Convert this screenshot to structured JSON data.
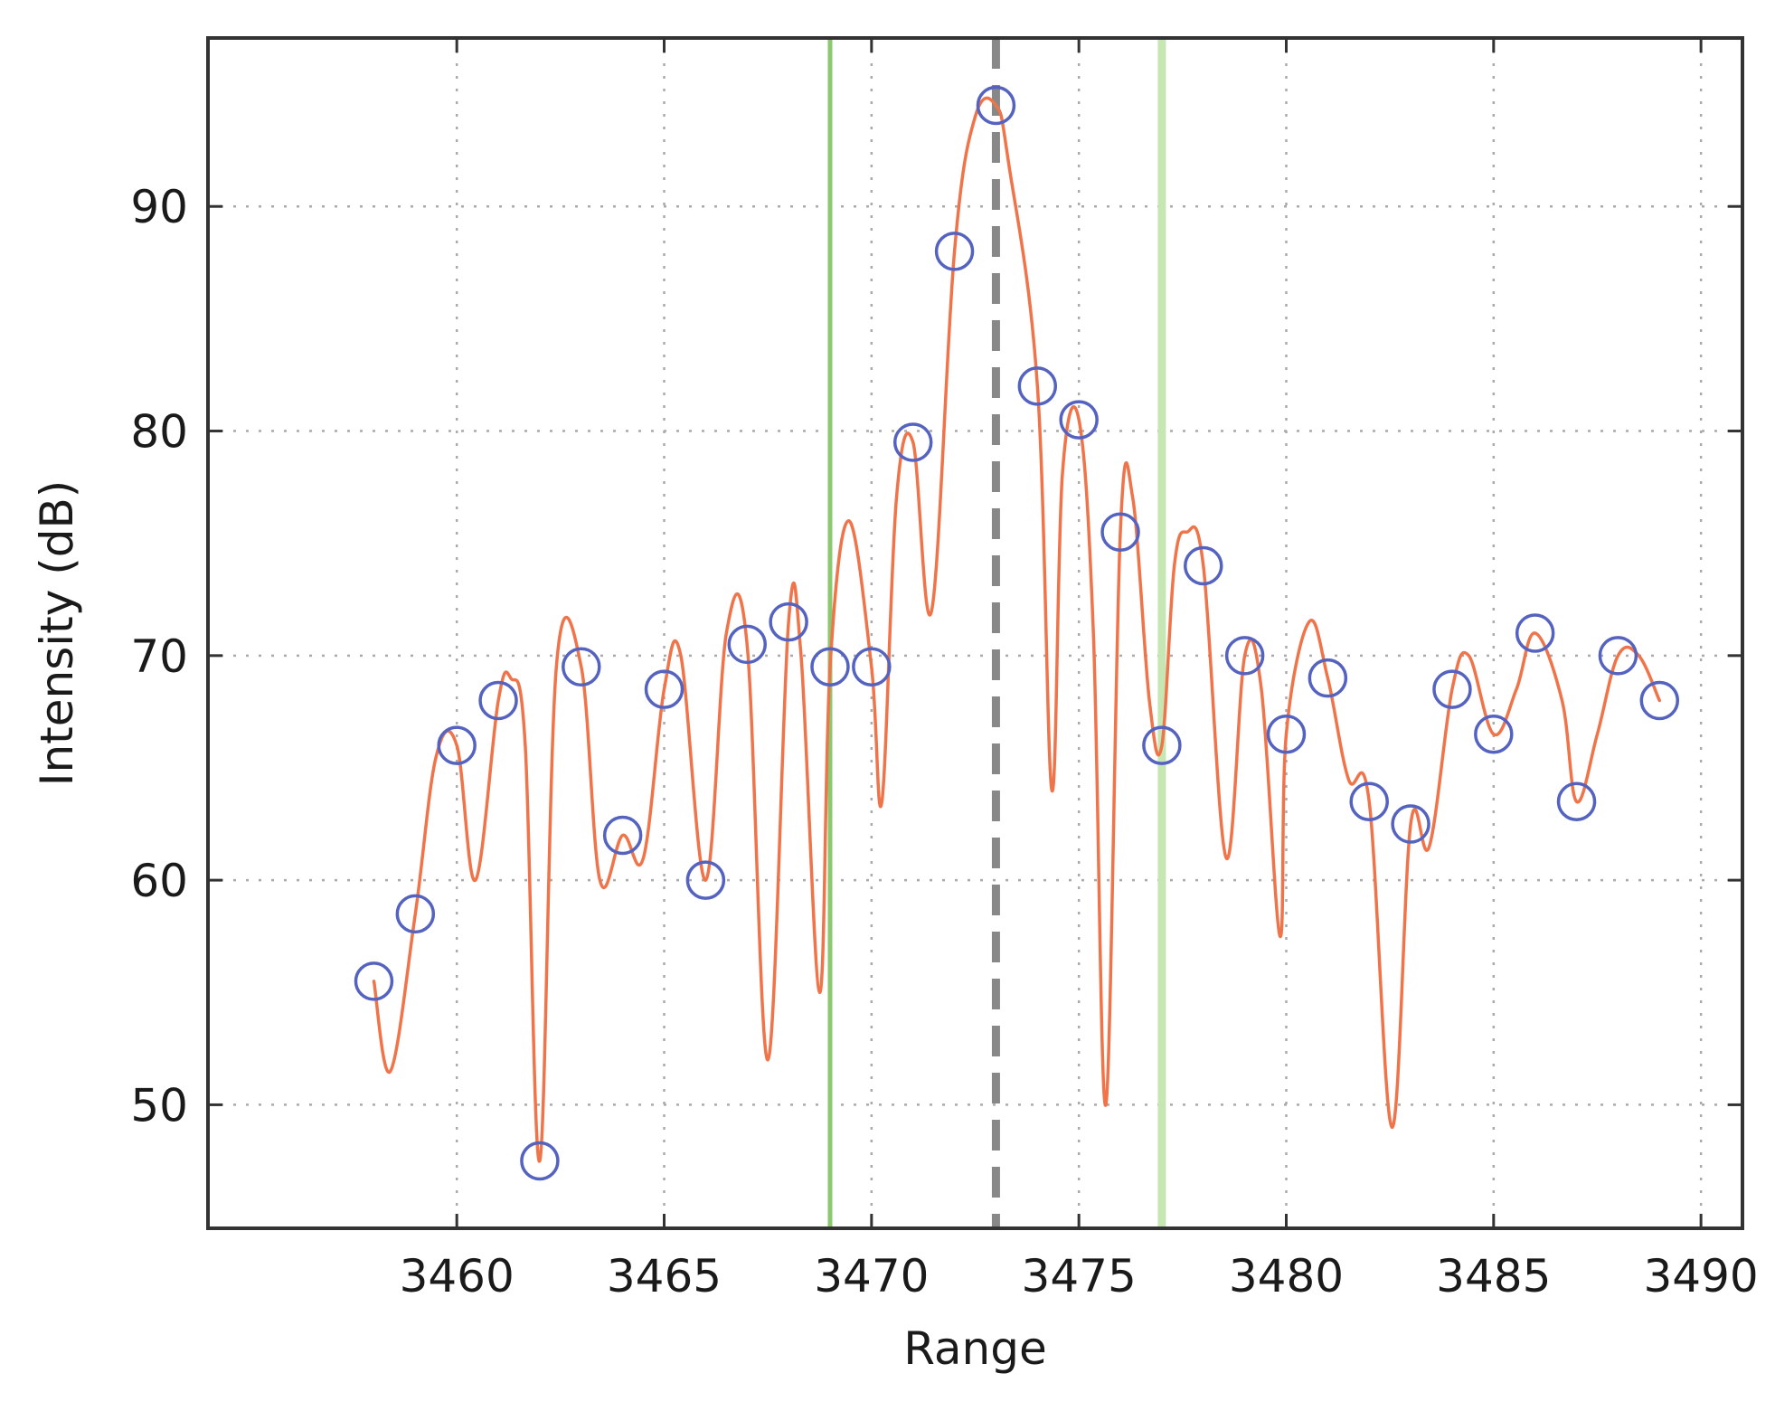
{
  "chart_data": {
    "type": "line",
    "title": "",
    "xlabel": "Range",
    "ylabel": "Intensity (dB)",
    "xlim": [
      3454,
      3491
    ],
    "ylim": [
      44.5,
      97.5
    ],
    "xticks": [
      3460,
      3465,
      3470,
      3475,
      3480,
      3485,
      3490
    ],
    "yticks": [
      50,
      60,
      70,
      80,
      90
    ],
    "grid": true,
    "colors": {
      "curve": "#f0744a",
      "markers": "#5563c0",
      "peak_line": "#888888",
      "left_bound": "#8cc870",
      "right_bound": "#c6e6b4",
      "grid": "#aaaaaa",
      "axes": "#333333"
    },
    "vertical_lines": [
      {
        "x": 3469,
        "style": "solid",
        "color": "#8cc870"
      },
      {
        "x": 3473,
        "style": "dashed",
        "color": "#888888"
      },
      {
        "x": 3477,
        "style": "solid",
        "color": "#c6e6b4"
      }
    ],
    "series": [
      {
        "type": "line",
        "x": [
          3458,
          3458.4,
          3459,
          3459.5,
          3460,
          3460.45,
          3461,
          3461.3,
          3461.65,
          3462,
          3462.4,
          3463,
          3463.45,
          3464,
          3464.5,
          3465,
          3465.4,
          3466,
          3466.5,
          3467,
          3467.5,
          3468,
          3468.3,
          3468.75,
          3469,
          3469.45,
          3470,
          3470.25,
          3470.6,
          3471,
          3471.45,
          3472,
          3472.5,
          3473,
          3473.3,
          3474,
          3474.35,
          3474.6,
          3475,
          3475.35,
          3475.65,
          3476,
          3476.3,
          3476.7,
          3477,
          3477.3,
          3477.6,
          3478,
          3478.55,
          3479,
          3479.4,
          3479.85,
          3480,
          3480.55,
          3481,
          3481.5,
          3482,
          3482.55,
          3483,
          3483.45,
          3484,
          3484.4,
          3485,
          3485.55,
          3486,
          3486.65,
          3487,
          3487.5,
          3488,
          3488.5,
          3489
        ],
        "y": [
          55.5,
          51.5,
          58.5,
          65.5,
          66,
          60,
          68,
          69,
          66,
          47.5,
          69.5,
          69.5,
          60,
          62,
          61,
          68.5,
          70,
          60,
          71,
          70.5,
          52,
          71.5,
          70,
          55,
          69.5,
          76,
          69.5,
          63.5,
          77,
          79.5,
          72,
          88,
          94,
          94.5,
          92,
          82,
          64,
          78,
          80.5,
          71,
          50,
          75.5,
          77,
          68,
          66,
          74,
          75.5,
          74,
          61,
          70,
          68.5,
          57.5,
          66.5,
          71.5,
          69,
          64.5,
          63.5,
          49,
          62.5,
          61.5,
          68.5,
          70,
          66.5,
          68.5,
          71,
          68,
          63.5,
          66.5,
          70,
          70,
          68
        ]
      },
      {
        "type": "scatter",
        "marker": "circle-open",
        "x": [
          3458,
          3459,
          3460,
          3461,
          3462,
          3463,
          3464,
          3465,
          3466,
          3467,
          3468,
          3469,
          3470,
          3471,
          3472,
          3473,
          3474,
          3475,
          3476,
          3477,
          3478,
          3479,
          3480,
          3481,
          3482,
          3483,
          3484,
          3485,
          3486,
          3487,
          3488,
          3489
        ],
        "y": [
          55.5,
          58.5,
          66,
          68,
          47.5,
          69.5,
          62,
          68.5,
          60,
          70.5,
          71.5,
          69.5,
          69.5,
          79.5,
          88,
          94.5,
          82,
          80.5,
          75.5,
          66,
          74,
          70,
          66.5,
          69,
          63.5,
          62.5,
          68.5,
          66.5,
          71,
          63.5,
          70,
          68
        ]
      }
    ]
  }
}
